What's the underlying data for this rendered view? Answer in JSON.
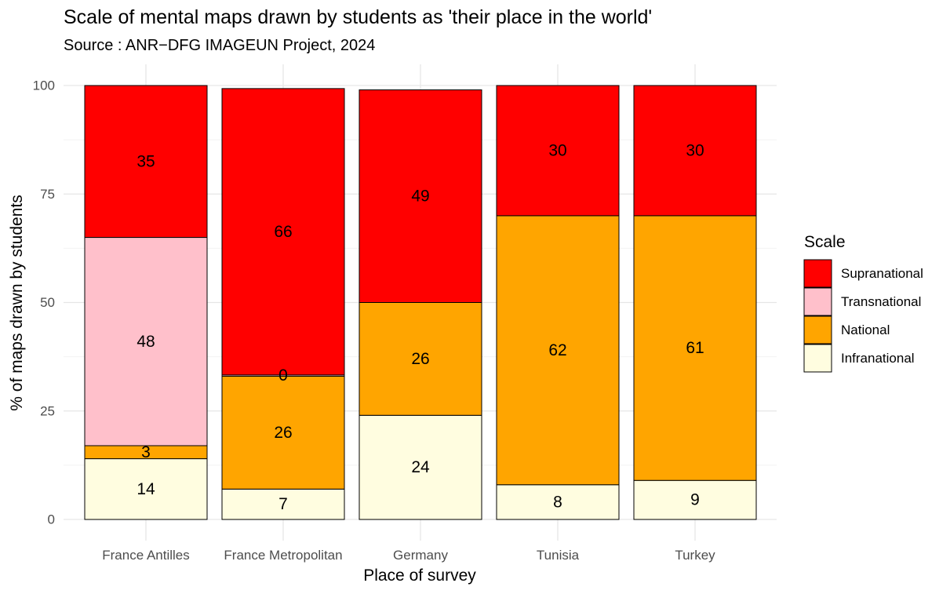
{
  "chart_data": {
    "type": "bar",
    "stacked": true,
    "title": "Scale of mental maps drawn by students as 'their place in the world'",
    "subtitle": "Source : ANR−DFG IMAGEUN Project, 2024",
    "xlabel": "Place of survey",
    "ylabel": "% of maps drawn by students",
    "ylim": [
      0,
      100
    ],
    "yticks": [
      0,
      25,
      50,
      75,
      100
    ],
    "grid": true,
    "legend_position": "right",
    "legend_title": "Scale",
    "categories": [
      "France Antilles",
      "France Metropolitan",
      "Germany",
      "Tunisia",
      "Turkey"
    ],
    "series": [
      {
        "name": "Infranational",
        "color": "#FFFDE0",
        "values": [
          14,
          7,
          24,
          8,
          9
        ],
        "labels": [
          "14",
          "7",
          "24",
          "8",
          "9"
        ]
      },
      {
        "name": "National",
        "color": "#FFA500",
        "values": [
          3,
          26,
          26,
          62,
          61
        ],
        "labels": [
          "3",
          "26",
          "26",
          "62",
          "61"
        ]
      },
      {
        "name": "Transnational",
        "color": "#FFC0CB",
        "values": [
          48,
          0.3,
          0,
          0,
          0
        ],
        "labels": [
          "48",
          "0",
          "",
          "",
          ""
        ]
      },
      {
        "name": "Supranational",
        "color": "#FF0000",
        "values": [
          35,
          66,
          49,
          30,
          30
        ],
        "labels": [
          "35",
          "66",
          "49",
          "30",
          "30"
        ]
      }
    ],
    "legend_order": [
      "Supranational",
      "Transnational",
      "National",
      "Infranational"
    ]
  }
}
